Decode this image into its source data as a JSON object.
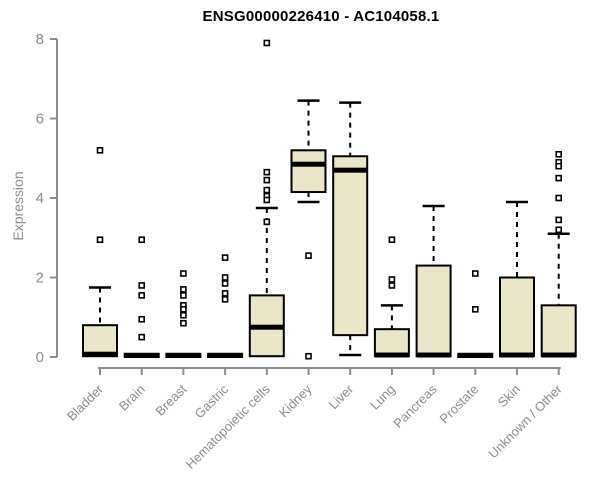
{
  "chart_data": {
    "type": "box",
    "title": "ENSG00000226410 - AC104058.1",
    "ylabel": "Expression",
    "xlabel": "",
    "ylim": [
      0,
      8
    ],
    "yticks": [
      0,
      2,
      4,
      6,
      8
    ],
    "grid": false,
    "legend": "none",
    "colors": {
      "box_fill": "#ece6c8",
      "box_border": "#000000",
      "median": "#000000",
      "whisker": "#000000",
      "outlier_fill": "#ffffff",
      "outlier_border": "#000000",
      "axis": "#8c8c8c",
      "title": "#000000"
    },
    "categories": [
      "Bladder",
      "Brain",
      "Breast",
      "Gastric",
      "Hematopoietic cells",
      "Kidney",
      "Liver",
      "Lung",
      "Pancreas",
      "Prostate",
      "Skin",
      "Unknown / Other"
    ],
    "boxes": [
      {
        "category": "Bladder",
        "whisker_low": 0,
        "q1": 0.02,
        "median": 0.07,
        "q3": 0.8,
        "whisker_high": 1.75,
        "outliers": [
          5.2,
          2.95
        ]
      },
      {
        "category": "Brain",
        "whisker_low": 0,
        "q1": 0,
        "median": 0.04,
        "q3": 0.08,
        "whisker_high": 0.08,
        "outliers": [
          2.95,
          1.8,
          1.55,
          0.95,
          0.5
        ]
      },
      {
        "category": "Breast",
        "whisker_low": 0,
        "q1": 0,
        "median": 0.04,
        "q3": 0.08,
        "whisker_high": 0.08,
        "outliers": [
          2.1,
          1.7,
          1.55,
          1.3,
          1.2,
          1.05,
          0.85
        ]
      },
      {
        "category": "Gastric",
        "whisker_low": 0,
        "q1": 0,
        "median": 0.04,
        "q3": 0.08,
        "whisker_high": 0.08,
        "outliers": [
          2.5,
          2.0,
          1.85,
          1.6,
          1.45
        ]
      },
      {
        "category": "Hematopoietic cells",
        "whisker_low": 0,
        "q1": 0.02,
        "median": 0.75,
        "q3": 1.55,
        "whisker_high": 3.75,
        "outliers": [
          7.9,
          4.65,
          4.45,
          4.2,
          4.05,
          3.95,
          3.4
        ]
      },
      {
        "category": "Kidney",
        "whisker_low": 3.9,
        "q1": 4.15,
        "median": 4.85,
        "q3": 5.2,
        "whisker_high": 6.45,
        "outliers": [
          2.55,
          0.02
        ]
      },
      {
        "category": "Liver",
        "whisker_low": 0.05,
        "q1": 0.55,
        "median": 4.7,
        "q3": 5.05,
        "whisker_high": 6.4,
        "outliers": []
      },
      {
        "category": "Lung",
        "whisker_low": 0,
        "q1": 0.02,
        "median": 0.05,
        "q3": 0.7,
        "whisker_high": 1.3,
        "outliers": [
          2.95,
          1.95,
          1.8
        ]
      },
      {
        "category": "Pancreas",
        "whisker_low": 0,
        "q1": 0.02,
        "median": 0.05,
        "q3": 2.3,
        "whisker_high": 3.8,
        "outliers": []
      },
      {
        "category": "Prostate",
        "whisker_low": 0,
        "q1": 0,
        "median": 0.04,
        "q3": 0.08,
        "whisker_high": 0.08,
        "outliers": [
          2.1,
          1.2
        ]
      },
      {
        "category": "Skin",
        "whisker_low": 0,
        "q1": 0.02,
        "median": 0.05,
        "q3": 2.0,
        "whisker_high": 3.9,
        "outliers": []
      },
      {
        "category": "Unknown / Other",
        "whisker_low": 0,
        "q1": 0.02,
        "median": 0.05,
        "q3": 1.3,
        "whisker_high": 3.1,
        "outliers": [
          5.1,
          4.9,
          4.8,
          4.5,
          4.0,
          3.45,
          3.2
        ]
      }
    ]
  }
}
